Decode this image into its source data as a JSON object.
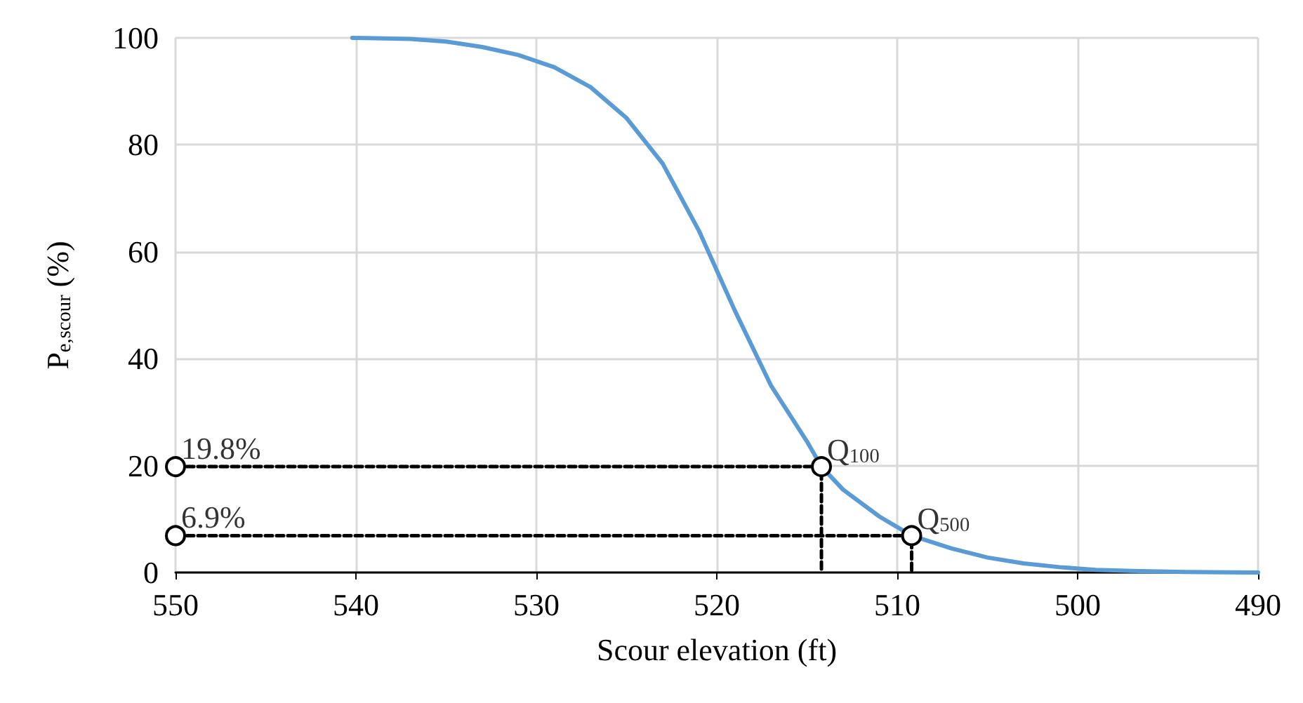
{
  "chart_data": {
    "type": "line",
    "xlabel": "Scour elevation (ft)",
    "ylabel": "P$_{e,scour}$ (%)",
    "xlim": [
      550,
      490
    ],
    "xticks": [
      550,
      540,
      530,
      520,
      510,
      500,
      490
    ],
    "ylim": [
      0,
      100
    ],
    "yticks": [
      0,
      20,
      40,
      60,
      80,
      100
    ],
    "grid": true,
    "series": [
      {
        "color": "#5b9bd5",
        "marker": "none",
        "line_style": "solid",
        "x": [
          540.2,
          537,
          535,
          533,
          531,
          529,
          527,
          525,
          523,
          521,
          519,
          517,
          515,
          514.2,
          513,
          511,
          509.2,
          507,
          505,
          503,
          501,
          499,
          497,
          494,
          490
        ],
        "values": [
          100,
          99.8,
          99.3,
          98.3,
          96.8,
          94.5,
          90.8,
          85,
          76.5,
          64,
          49,
          35,
          24.5,
          19.8,
          15.5,
          10.5,
          6.9,
          4.5,
          2.8,
          1.7,
          1,
          0.5,
          0.3,
          0.1,
          0
        ]
      },
      {
        "type": "line",
        "color": "#000000",
        "marker": "none",
        "line_style": "dashed",
        "x": [
          550,
          514.2,
          514.2
        ],
        "values": [
          19.8,
          19.8,
          0
        ]
      },
      {
        "type": "line",
        "color": "#000000",
        "marker": "none",
        "line_style": "dashed",
        "x": [
          550,
          509.2,
          509.2
        ],
        "values": [
          6.9,
          6.9,
          0
        ]
      },
      {
        "type": "scatter",
        "color": "#000000",
        "marker": "circle",
        "x": [
          550,
          514.2,
          550,
          509.2
        ],
        "values": [
          19.8,
          19.8,
          6.9,
          6.9
        ]
      }
    ],
    "annotations": [
      {
        "text": "19.8%",
        "x": 550,
        "y": 19.8
      },
      {
        "text": "6.9%",
        "x": 550,
        "y": 6.9
      },
      {
        "text": "Q$_{100}$",
        "x": 514.2,
        "y": 19.8
      },
      {
        "text": "Q$_{500}$",
        "x": 509.2,
        "y": 6.9
      }
    ]
  }
}
